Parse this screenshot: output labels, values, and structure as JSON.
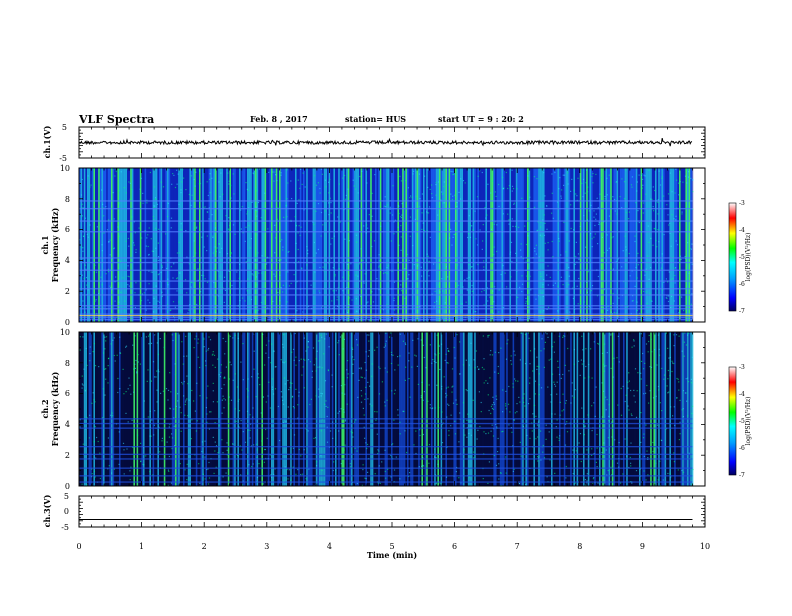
{
  "header": {
    "title": "VLF Spectra",
    "date": "Feb. 8 , 2017",
    "station": "station= HUS",
    "start": "start UT =  9 : 20: 2"
  },
  "chart_data": [
    {
      "type": "line",
      "name": "ch1-waveform",
      "ylabel": "ch.1(V)",
      "ylim": [
        -5,
        5
      ],
      "yticks": [
        "5",
        "-5"
      ],
      "xlim": [
        0,
        10
      ],
      "baseline": 0
    },
    {
      "type": "heatmap",
      "name": "ch1-spectrogram",
      "ylabel": [
        "ch.1",
        "Frequency (kHz)"
      ],
      "ylim": [
        0,
        10
      ],
      "yticks": [
        "0",
        "2",
        "4",
        "6",
        "8",
        "10"
      ],
      "xlim": [
        0,
        10
      ],
      "data_end_min": 9.8,
      "colorbar": {
        "range": [
          -7,
          -3
        ],
        "ticks": [
          "-3",
          "-4",
          "-5",
          "-6",
          "-7"
        ],
        "label": "log(PSD)(V²/Hz)"
      }
    },
    {
      "type": "heatmap",
      "name": "ch2-spectrogram",
      "ylabel": [
        "ch.2",
        "Frequency (kHz)"
      ],
      "ylim": [
        0,
        10
      ],
      "yticks": [
        "0",
        "2",
        "4",
        "6",
        "8",
        "10"
      ],
      "xlim": [
        0,
        10
      ],
      "data_end_min": 9.8,
      "colorbar": {
        "range": [
          -7,
          -3
        ],
        "ticks": [
          "-3",
          "-4",
          "-5",
          "-6",
          "-7"
        ],
        "label": "log(PSD)(V²/Hz)"
      }
    },
    {
      "type": "line",
      "name": "ch3-waveform",
      "ylabel": "ch.3(V)",
      "ylim": [
        -5,
        5
      ],
      "yticks": [
        "5",
        "0",
        "-5"
      ],
      "xlim": [
        0,
        10
      ],
      "baseline": -2.6
    }
  ],
  "xaxis": {
    "label": "Time (min)",
    "ticks": [
      "0",
      "1",
      "2",
      "3",
      "4",
      "5",
      "6",
      "7",
      "8",
      "9",
      "10"
    ]
  }
}
